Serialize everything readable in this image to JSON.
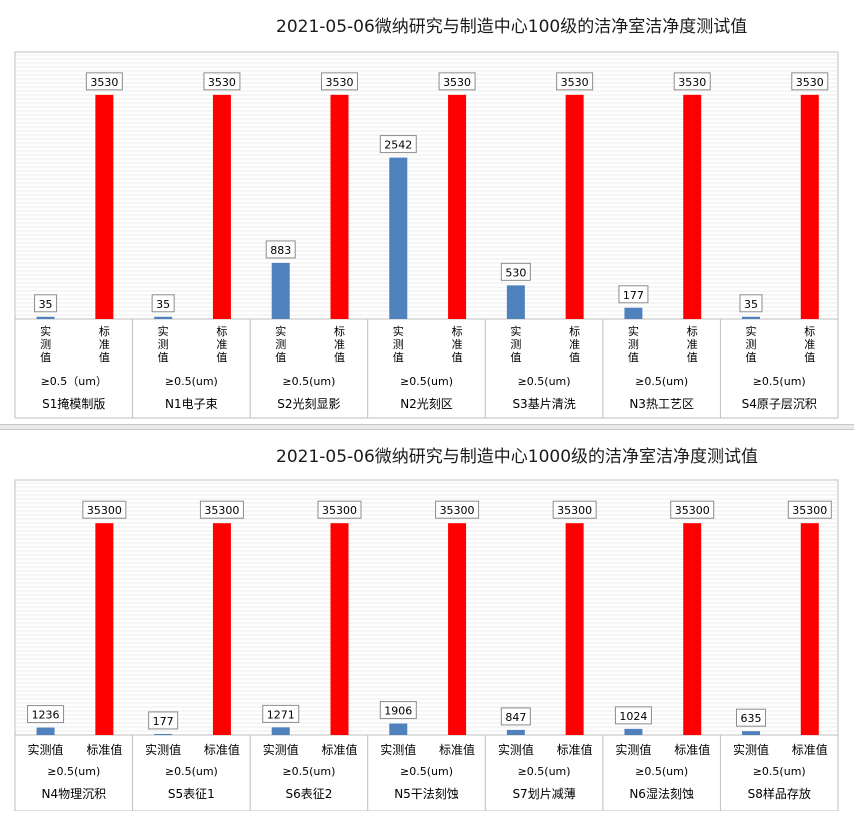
{
  "colors": {
    "measured": "#4f81bd",
    "standard": "#ff0000",
    "grid": "#d9d9d9",
    "axis": "#bfbfbf"
  },
  "chart_data": [
    {
      "type": "bar",
      "title": "2021-05-06微纳研究与制造中心100级的洁净室洁净度测试值",
      "ylim": [
        0,
        4000
      ],
      "grid": true,
      "tick_label_orientation": "vertical",
      "series_labels": [
        "实测值",
        "标准值"
      ],
      "particle_label_first": "≥0.5（um）",
      "particle_label": "≥0.5(um)",
      "groups": [
        {
          "name": "S1掩模制版",
          "values": [
            35,
            3530
          ]
        },
        {
          "name": "N1电子束",
          "values": [
            35,
            3530
          ]
        },
        {
          "name": "S2光刻显影",
          "values": [
            883,
            3530
          ]
        },
        {
          "name": "N2光刻区",
          "values": [
            2542,
            3530
          ]
        },
        {
          "name": "S3基片清洗",
          "values": [
            530,
            3530
          ]
        },
        {
          "name": "N3热工艺区",
          "values": [
            177,
            3530
          ]
        },
        {
          "name": "S4原子层沉积",
          "values": [
            35,
            3530
          ]
        }
      ]
    },
    {
      "type": "bar",
      "title": "2021-05-06微纳研究与制造中心1000级的洁净室洁净度测试值",
      "ylim": [
        0,
        40000
      ],
      "grid": true,
      "tick_label_orientation": "horizontal",
      "series_labels": [
        "实测值",
        "标准值"
      ],
      "particle_label": "≥0.5(um)",
      "groups": [
        {
          "name": "N4物理沉积",
          "values": [
            1236,
            35300
          ]
        },
        {
          "name": "S5表征1",
          "values": [
            177,
            35300
          ]
        },
        {
          "name": "S6表征2",
          "values": [
            1271,
            35300
          ]
        },
        {
          "name": "N5干法刻蚀",
          "values": [
            1906,
            35300
          ]
        },
        {
          "name": "S7划片减薄",
          "values": [
            847,
            35300
          ]
        },
        {
          "name": "N6湿法刻蚀",
          "values": [
            1024,
            35300
          ]
        },
        {
          "name": "S8样品存放",
          "values": [
            635,
            35300
          ]
        }
      ]
    }
  ]
}
